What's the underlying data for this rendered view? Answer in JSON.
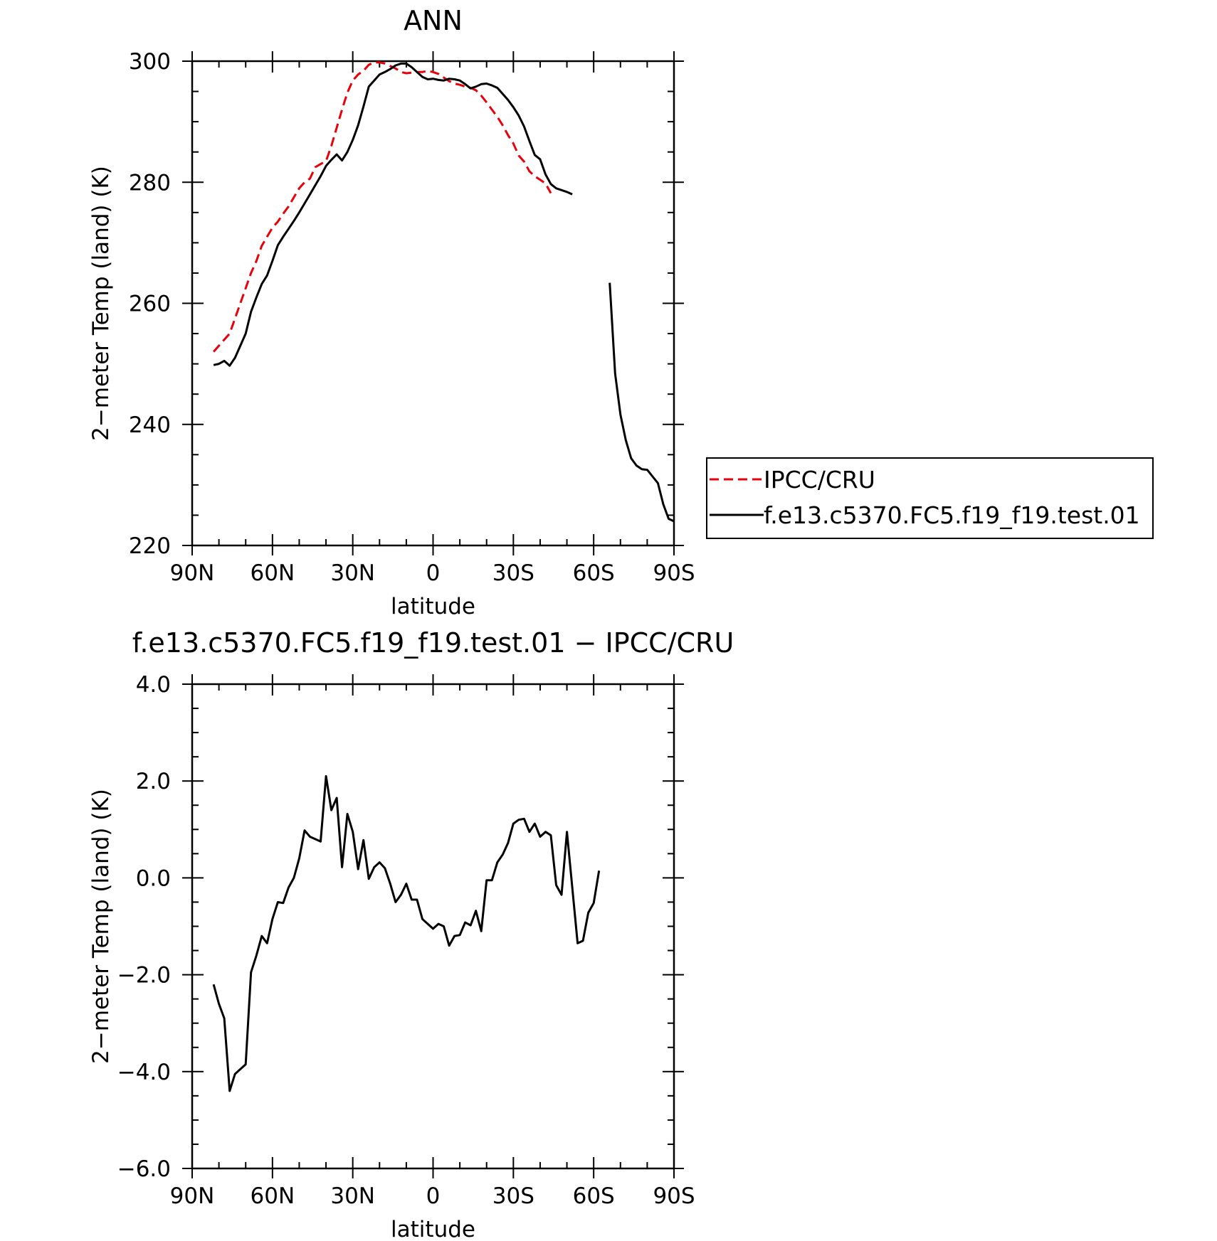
{
  "chart_data": [
    {
      "type": "line",
      "title": "ANN",
      "xlabel": "latitude",
      "ylabel": "2−meter Temp (land) (K)",
      "xlim": [
        90,
        -90
      ],
      "ylim": [
        220,
        300
      ],
      "x_ticks": [
        90,
        60,
        30,
        0,
        -30,
        -60,
        -90
      ],
      "x_tick_labels": [
        "90N",
        "60N",
        "30N",
        "0",
        "30S",
        "60S",
        "90S"
      ],
      "y_ticks": [
        220,
        240,
        260,
        280,
        300
      ],
      "y_tick_labels": [
        "220",
        "240",
        "260",
        "280",
        "300"
      ],
      "legend": {
        "position": "right",
        "entries": [
          {
            "label": "IPCC/CRU",
            "color": "#e8000b",
            "dash": true
          },
          {
            "label": "f.e13.c5370.FC5.f19_f19.test.01",
            "color": "#000000",
            "dash": false
          }
        ]
      },
      "series": [
        {
          "name": "IPCC/CRU",
          "color": "#e8000b",
          "dashed": true,
          "points": [
            [
              82,
              252
            ],
            [
              80,
              253
            ],
            [
              78,
              254
            ],
            [
              76,
              255
            ],
            [
              74,
              257.5
            ],
            [
              72,
              260
            ],
            [
              70,
              262.5
            ],
            [
              68,
              265
            ],
            [
              66,
              267
            ],
            [
              64,
              269.5
            ],
            [
              62,
              271
            ],
            [
              60,
              272.5
            ],
            [
              58,
              273.5
            ],
            [
              56,
              274.8
            ],
            [
              54,
              276
            ],
            [
              52,
              277.5
            ],
            [
              50,
              279
            ],
            [
              48,
              280
            ],
            [
              46,
              280.6
            ],
            [
              44,
              282.5
            ],
            [
              42,
              283
            ],
            [
              40,
              283.5
            ],
            [
              38,
              286
            ],
            [
              36,
              289
            ],
            [
              34,
              292
            ],
            [
              32,
              294.8
            ],
            [
              30,
              296.8
            ],
            [
              28,
              297.8
            ],
            [
              26,
              298.4
            ],
            [
              24,
              299.4
            ],
            [
              22,
              299.8
            ],
            [
              20,
              299.8
            ],
            [
              18,
              299.6
            ],
            [
              16,
              299.2
            ],
            [
              14,
              298.8
            ],
            [
              12,
              298.2
            ],
            [
              10,
              298
            ],
            [
              8,
              298.1
            ],
            [
              6,
              298.2
            ],
            [
              4,
              298.2
            ],
            [
              2,
              298.4
            ],
            [
              0,
              298.2
            ],
            [
              -2,
              297.9
            ],
            [
              -4,
              297.3
            ],
            [
              -6,
              296.7
            ],
            [
              -8,
              296.3
            ],
            [
              -10,
              296.1
            ],
            [
              -12,
              295.8
            ],
            [
              -14,
              295.6
            ],
            [
              -16,
              295.2
            ],
            [
              -18,
              294.3
            ],
            [
              -20,
              293.2
            ],
            [
              -22,
              292
            ],
            [
              -24,
              290.8
            ],
            [
              -26,
              289.4
            ],
            [
              -28,
              287.8
            ],
            [
              -30,
              286.4
            ],
            [
              -32,
              284.4
            ],
            [
              -34,
              283.4
            ],
            [
              -36,
              281.8
            ],
            [
              -38,
              281
            ],
            [
              -40,
              280.4
            ],
            [
              -42,
              279.8
            ],
            [
              -44,
              278.2
            ]
          ]
        },
        {
          "name": "f.e13.c5370.FC5.f19_f19.test.01",
          "color": "#000000",
          "dashed": false,
          "points": [
            [
              82,
              249.8
            ],
            [
              80,
              250
            ],
            [
              78,
              250.5
            ],
            [
              76,
              249.7
            ],
            [
              74,
              251
            ],
            [
              72,
              253
            ],
            [
              70,
              255
            ],
            [
              68,
              258.6
            ],
            [
              66,
              261
            ],
            [
              64,
              263.2
            ],
            [
              62,
              264.6
            ],
            [
              60,
              267
            ],
            [
              58,
              269.6
            ],
            [
              56,
              271
            ],
            [
              54,
              272.3
            ],
            [
              52,
              273.6
            ],
            [
              50,
              275
            ],
            [
              48,
              276.5
            ],
            [
              46,
              278
            ],
            [
              44,
              279.5
            ],
            [
              42,
              281
            ],
            [
              40,
              282.7
            ],
            [
              38,
              283.7
            ],
            [
              36,
              284.6
            ],
            [
              34,
              283.6
            ],
            [
              32,
              285
            ],
            [
              30,
              287
            ],
            [
              28,
              289.4
            ],
            [
              26,
              292.5
            ],
            [
              24,
              295.8
            ],
            [
              22,
              296.8
            ],
            [
              20,
              297.8
            ],
            [
              18,
              298.2
            ],
            [
              16,
              298.7
            ],
            [
              14,
              299.3
            ],
            [
              12,
              299.6
            ],
            [
              10,
              299.6
            ],
            [
              8,
              299
            ],
            [
              6,
              298.2
            ],
            [
              4,
              297.4
            ],
            [
              2,
              297
            ],
            [
              0,
              297.1
            ],
            [
              -2,
              296.9
            ],
            [
              -4,
              296.8
            ],
            [
              -6,
              297.1
            ],
            [
              -8,
              297
            ],
            [
              -10,
              296.8
            ],
            [
              -12,
              296.2
            ],
            [
              -14,
              295.5
            ],
            [
              -16,
              295.8
            ],
            [
              -18,
              296.2
            ],
            [
              -20,
              296.3
            ],
            [
              -22,
              296
            ],
            [
              -24,
              295.6
            ],
            [
              -26,
              294.6
            ],
            [
              -28,
              293.6
            ],
            [
              -30,
              292.4
            ],
            [
              -32,
              291
            ],
            [
              -34,
              289.2
            ],
            [
              -36,
              286.8
            ],
            [
              -38,
              284.5
            ],
            [
              -40,
              283.8
            ],
            [
              -42,
              281.3
            ],
            [
              -44,
              279.7
            ],
            [
              -46,
              279
            ],
            [
              -48,
              278.7
            ],
            [
              -50,
              278.4
            ],
            [
              -52,
              278
            ],
            [
              null,
              null
            ],
            [
              -66,
              263.4
            ],
            [
              -68,
              248.4
            ],
            [
              -70,
              241.6
            ],
            [
              -72,
              237.4
            ],
            [
              -74,
              234.4
            ],
            [
              -76,
              233.2
            ],
            [
              -78,
              232.6
            ],
            [
              -80,
              232.5
            ],
            [
              -82,
              231.4
            ],
            [
              -84,
              230.3
            ],
            [
              -86,
              226.8
            ],
            [
              -88,
              224.4
            ],
            [
              -90,
              224
            ]
          ]
        }
      ]
    },
    {
      "type": "line",
      "title": "f.e13.c5370.FC5.f19_f19.test.01 − IPCC/CRU",
      "xlabel": "latitude",
      "ylabel": "2−meter Temp (land) (K)",
      "xlim": [
        90,
        -90
      ],
      "ylim": [
        -6,
        4
      ],
      "x_ticks": [
        90,
        60,
        30,
        0,
        -30,
        -60,
        -90
      ],
      "x_tick_labels": [
        "90N",
        "60N",
        "30N",
        "0",
        "30S",
        "60S",
        "90S"
      ],
      "y_ticks": [
        -6,
        -4,
        -2,
        0,
        2,
        4
      ],
      "y_tick_labels": [
        "−6.0",
        "−4.0",
        "−2.0",
        "0.0",
        "2.0",
        "4.0"
      ],
      "series": [
        {
          "color": "#000000",
          "dashed": false,
          "points": [
            [
              82,
              -2.2
            ],
            [
              80,
              -2.6
            ],
            [
              78,
              -2.9
            ],
            [
              76,
              -4.4
            ],
            [
              74,
              -4.05
            ],
            [
              72,
              -3.95
            ],
            [
              70,
              -3.85
            ],
            [
              68,
              -1.95
            ],
            [
              66,
              -1.6
            ],
            [
              64,
              -1.2
            ],
            [
              62,
              -1.35
            ],
            [
              60,
              -0.85
            ],
            [
              58,
              -0.5
            ],
            [
              56,
              -0.52
            ],
            [
              54,
              -0.2
            ],
            [
              52,
              0
            ],
            [
              50,
              0.4
            ],
            [
              48,
              0.98
            ],
            [
              46,
              0.85
            ],
            [
              44,
              0.8
            ],
            [
              42,
              0.75
            ],
            [
              40,
              2.1
            ],
            [
              38,
              1.4
            ],
            [
              36,
              1.65
            ],
            [
              34,
              0.22
            ],
            [
              32,
              1.32
            ],
            [
              30,
              0.95
            ],
            [
              28,
              0.18
            ],
            [
              26,
              0.78
            ],
            [
              24,
              -0.02
            ],
            [
              22,
              0.22
            ],
            [
              20,
              0.32
            ],
            [
              18,
              0.2
            ],
            [
              16,
              -0.12
            ],
            [
              14,
              -0.5
            ],
            [
              12,
              -0.35
            ],
            [
              10,
              -0.12
            ],
            [
              8,
              -0.45
            ],
            [
              6,
              -0.45
            ],
            [
              4,
              -0.85
            ],
            [
              2,
              -0.95
            ],
            [
              0,
              -1.05
            ],
            [
              -2,
              -0.95
            ],
            [
              -4,
              -1.0
            ],
            [
              -6,
              -1.4
            ],
            [
              -8,
              -1.2
            ],
            [
              -10,
              -1.18
            ],
            [
              -12,
              -0.92
            ],
            [
              -14,
              -0.98
            ],
            [
              -16,
              -0.68
            ],
            [
              -18,
              -1.1
            ],
            [
              -20,
              -0.05
            ],
            [
              -22,
              -0.05
            ],
            [
              -24,
              0.32
            ],
            [
              -26,
              0.48
            ],
            [
              -28,
              0.72
            ],
            [
              -30,
              1.12
            ],
            [
              -32,
              1.2
            ],
            [
              -34,
              1.22
            ],
            [
              -36,
              0.95
            ],
            [
              -38,
              1.12
            ],
            [
              -40,
              0.85
            ],
            [
              -42,
              0.95
            ],
            [
              -44,
              0.88
            ],
            [
              -46,
              -0.15
            ],
            [
              -48,
              -0.35
            ],
            [
              -50,
              0.95
            ],
            [
              -52,
              -0.2
            ],
            [
              -54,
              -1.35
            ],
            [
              -56,
              -1.3
            ],
            [
              -58,
              -0.72
            ],
            [
              -60,
              -0.52
            ],
            [
              -62,
              0.15
            ]
          ]
        }
      ]
    }
  ]
}
